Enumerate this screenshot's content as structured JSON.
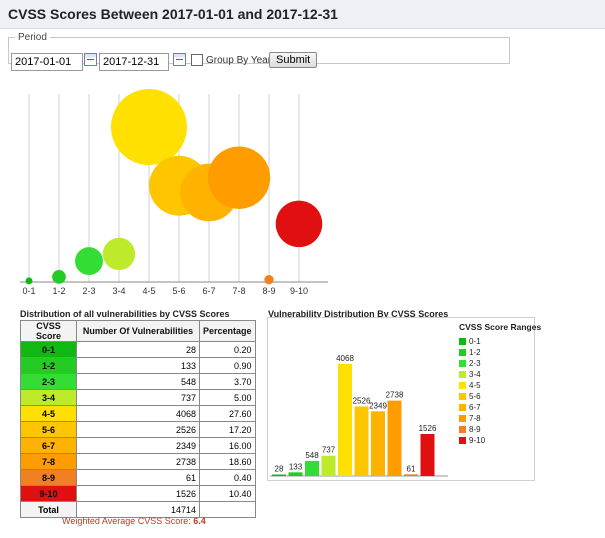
{
  "page": {
    "title": "CVSS Scores Between 2017-01-01 and 2017-12-31"
  },
  "period": {
    "legend": "Period",
    "start": "2017-01-01",
    "end": "2017-12-31",
    "group_by_year_label": "Group By Year",
    "submit_label": "Submit"
  },
  "ranges": [
    "0-1",
    "1-2",
    "2-3",
    "3-4",
    "4-5",
    "5-6",
    "6-7",
    "7-8",
    "8-9",
    "9-10"
  ],
  "colors": [
    "#11b811",
    "#22cc22",
    "#33dd33",
    "#bdea2a",
    "#ffe000",
    "#ffc600",
    "#ffb200",
    "#ff9d00",
    "#f08020",
    "#e01010"
  ],
  "table": {
    "title": "Distribution of all vulnerabilities by CVSS Scores",
    "headers": [
      "CVSS Score",
      "Number Of Vulnerabilities",
      "Percentage"
    ],
    "rows": [
      {
        "score": "0-1",
        "count": "28",
        "pct": "0.20"
      },
      {
        "score": "1-2",
        "count": "133",
        "pct": "0.90"
      },
      {
        "score": "2-3",
        "count": "548",
        "pct": "3.70"
      },
      {
        "score": "3-4",
        "count": "737",
        "pct": "5.00"
      },
      {
        "score": "4-5",
        "count": "4068",
        "pct": "27.60"
      },
      {
        "score": "5-6",
        "count": "2526",
        "pct": "17.20"
      },
      {
        "score": "6-7",
        "count": "2349",
        "pct": "16.00"
      },
      {
        "score": "7-8",
        "count": "2738",
        "pct": "18.60"
      },
      {
        "score": "8-9",
        "count": "61",
        "pct": "0.40"
      },
      {
        "score": "9-10",
        "count": "1526",
        "pct": "10.40"
      }
    ],
    "total_label": "Total",
    "total": "14714"
  },
  "weighted_avg": {
    "label": "Weighted Average CVSS Score:",
    "value": "6.4"
  },
  "chart_data": [
    {
      "type": "scatter",
      "categories": [
        "0-1",
        "1-2",
        "2-3",
        "3-4",
        "4-5",
        "5-6",
        "6-7",
        "7-8",
        "8-9",
        "9-10"
      ],
      "values": [
        28,
        133,
        548,
        737,
        4068,
        2526,
        2349,
        2738,
        61,
        1526
      ],
      "title": "",
      "xlabel": "",
      "ylabel": "",
      "grid": "vertical"
    },
    {
      "type": "bar",
      "title": "Vulnerability Distribution By CVSS Scores",
      "categories": [
        "0-1",
        "1-2",
        "2-3",
        "3-4",
        "4-5",
        "5-6",
        "6-7",
        "7-8",
        "8-9",
        "9-10"
      ],
      "values": [
        28,
        133,
        548,
        737,
        4068,
        2526,
        2349,
        2738,
        61,
        1526
      ],
      "legend_title": "CVSS Score Ranges",
      "legend_position": "right",
      "ylim": [
        0,
        4068
      ]
    }
  ]
}
